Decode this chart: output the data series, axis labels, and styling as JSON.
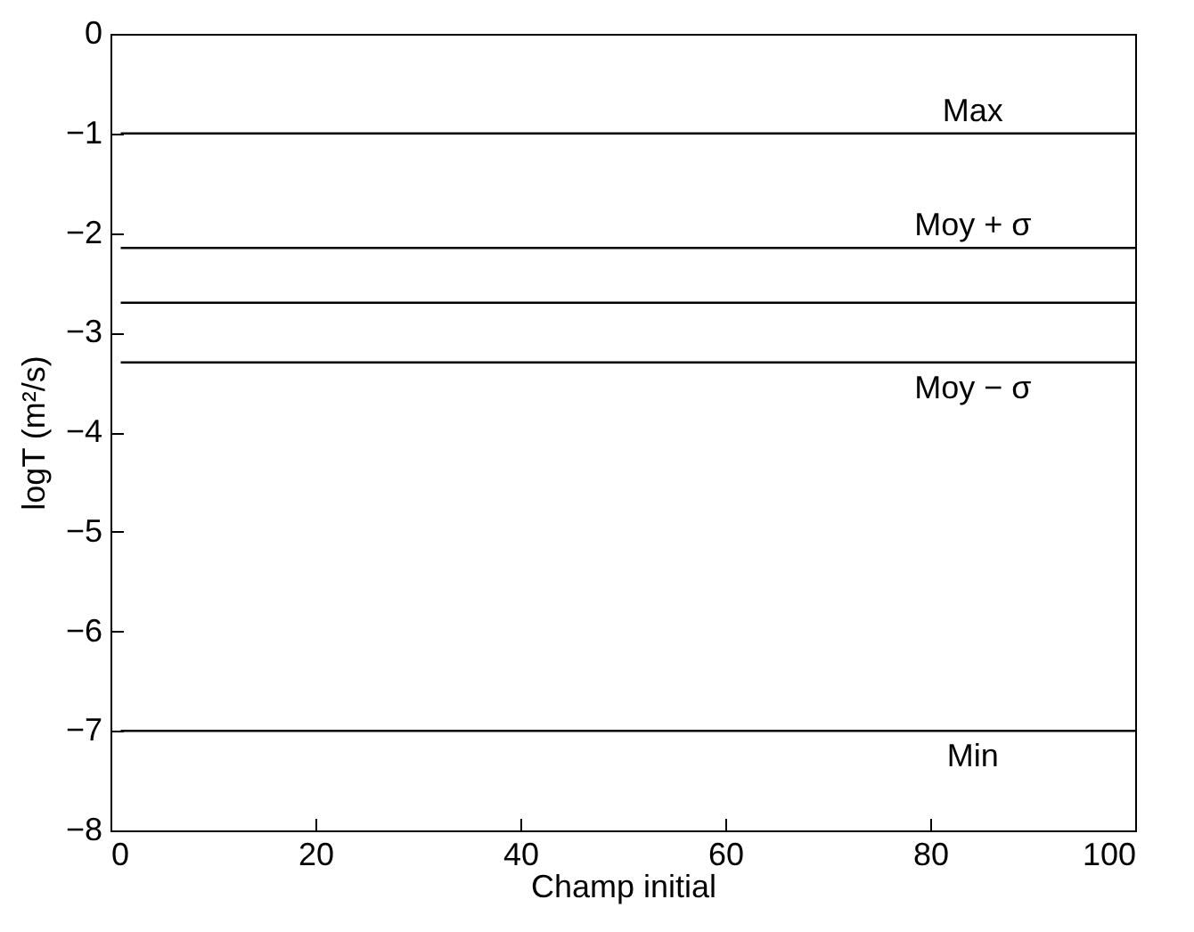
{
  "chart_data": {
    "type": "line",
    "xlabel": "Champ initial",
    "ylabel": "logT (m²/s)",
    "xlim": [
      0,
      100
    ],
    "ylim": [
      -8,
      0
    ],
    "xticks": [
      0,
      20,
      40,
      60,
      80,
      100
    ],
    "yticks": [
      -8,
      -7,
      -6,
      -5,
      -4,
      -3,
      -2,
      -1,
      0
    ],
    "x": [
      1,
      100
    ],
    "marker": "none",
    "line_style": "solid",
    "series": [
      {
        "name": "Max",
        "color": "#000000",
        "values": [
          -1,
          -1
        ]
      },
      {
        "name": "Moy + σ",
        "color": "#000000",
        "values": [
          -2.15,
          -2.15
        ]
      },
      {
        "color": "#000000",
        "values": [
          -2.7,
          -2.7
        ]
      },
      {
        "name": "Moy − σ",
        "color": "#000000",
        "values": [
          -3.3,
          -3.3
        ]
      },
      {
        "name": "Min",
        "color": "#000000",
        "values": [
          -7,
          -7
        ]
      }
    ]
  }
}
